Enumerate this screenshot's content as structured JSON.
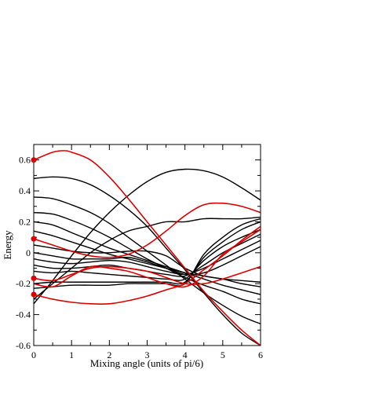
{
  "chart_data": {
    "type": "line",
    "title": "",
    "xlabel": "Mixing angle (units of pi/6)",
    "ylabel": "Energy",
    "xlim": [
      0,
      6
    ],
    "ylim": [
      -0.6,
      0.7
    ],
    "x_ticks": [
      0,
      1,
      2,
      3,
      4,
      5,
      6
    ],
    "y_ticks": [
      -0.6,
      -0.4,
      -0.2,
      0,
      0.2,
      0.4,
      0.6
    ],
    "grid": false,
    "legend": "none",
    "colors": {
      "black": "#000000",
      "red": "#dd0000"
    },
    "markers": [
      {
        "x": 0,
        "y": 0.6,
        "color": "red"
      },
      {
        "x": 0,
        "y": 0.09,
        "color": "red"
      },
      {
        "x": 0,
        "y": -0.165,
        "color": "red"
      },
      {
        "x": 0,
        "y": -0.27,
        "color": "red"
      }
    ],
    "series": [
      {
        "color": "red",
        "x": [
          0,
          0.5,
          0.8,
          1,
          1.5,
          2,
          2.5,
          3,
          3.5,
          4,
          4.5,
          5,
          5.5,
          6
        ],
        "y": [
          0.6,
          0.65,
          0.66,
          0.65,
          0.6,
          0.49,
          0.35,
          0.2,
          0.05,
          -0.1,
          -0.25,
          -0.38,
          -0.5,
          -0.6
        ]
      },
      {
        "color": "red",
        "x": [
          0,
          0.5,
          1,
          1.5,
          2,
          2.5,
          3,
          3.5,
          4,
          4.5,
          5,
          5.5,
          6
        ],
        "y": [
          0.09,
          0.05,
          0.01,
          -0.02,
          -0.03,
          -0.01,
          0.05,
          0.14,
          0.24,
          0.31,
          0.32,
          0.3,
          0.26
        ]
      },
      {
        "color": "red",
        "x": [
          0,
          0.5,
          1,
          1.5,
          2,
          2.5,
          3,
          3.5,
          4,
          4.5,
          5,
          5.5,
          6
        ],
        "y": [
          -0.165,
          -0.18,
          -0.14,
          -0.1,
          -0.09,
          -0.1,
          -0.12,
          -0.16,
          -0.2,
          -0.2,
          -0.17,
          -0.13,
          -0.09
        ]
      },
      {
        "color": "red",
        "x": [
          0,
          0.5,
          1,
          1.5,
          2,
          2.5,
          3,
          3.5,
          4,
          4.5,
          5,
          5.5,
          6
        ],
        "y": [
          -0.27,
          -0.3,
          -0.32,
          -0.33,
          -0.33,
          -0.31,
          -0.28,
          -0.24,
          -0.2,
          -0.11,
          -0.02,
          0.08,
          0.17
        ]
      },
      {
        "color": "red",
        "x": [
          0,
          0.5,
          1,
          1.5,
          2,
          2.5,
          3,
          3.5,
          4,
          4.5,
          5,
          5.5,
          6
        ],
        "y": [
          -0.2,
          -0.22,
          -0.15,
          -0.09,
          -0.1,
          -0.12,
          -0.16,
          -0.2,
          -0.22,
          -0.15,
          -0.01,
          0.07,
          0.15
        ]
      },
      {
        "color": "black",
        "x": [
          0,
          0.5,
          1,
          1.5,
          2,
          2.5,
          3,
          3.5,
          4,
          4.5,
          5,
          5.5,
          6
        ],
        "y": [
          0.48,
          0.49,
          0.48,
          0.44,
          0.37,
          0.28,
          0.17,
          0.03,
          -0.11,
          -0.26,
          -0.4,
          -0.52,
          -0.6
        ]
      },
      {
        "color": "black",
        "x": [
          0,
          0.5,
          1,
          1.5,
          2,
          2.5,
          3,
          3.5,
          4,
          4.5,
          5,
          5.5,
          6
        ],
        "y": [
          0.36,
          0.35,
          0.31,
          0.26,
          0.19,
          0.1,
          0.01,
          -0.08,
          -0.17,
          -0.26,
          -0.34,
          -0.41,
          -0.46
        ]
      },
      {
        "color": "black",
        "x": [
          0,
          0.5,
          1,
          1.5,
          2,
          2.5,
          3,
          3.5,
          4,
          4.5,
          5,
          5.5,
          6
        ],
        "y": [
          0.26,
          0.25,
          0.21,
          0.16,
          0.1,
          0.03,
          -0.04,
          -0.1,
          -0.16,
          -0.21,
          -0.25,
          -0.3,
          -0.33
        ]
      },
      {
        "color": "black",
        "x": [
          0,
          0.5,
          1,
          1.5,
          2,
          2.5,
          3,
          3.5,
          4,
          4.5,
          5,
          5.5,
          6
        ],
        "y": [
          0.2,
          0.18,
          0.13,
          0.08,
          0.03,
          -0.01,
          -0.05,
          -0.09,
          -0.13,
          -0.17,
          -0.21,
          -0.24,
          -0.27
        ]
      },
      {
        "color": "black",
        "x": [
          0,
          0.5,
          1,
          1.5,
          2,
          2.5,
          3,
          3.5,
          4,
          4.5,
          5,
          5.5,
          6
        ],
        "y": [
          0.14,
          0.11,
          0.07,
          0.03,
          -0.01,
          -0.04,
          -0.07,
          -0.1,
          -0.13,
          -0.15,
          -0.17,
          -0.18,
          -0.19
        ]
      },
      {
        "color": "black",
        "x": [
          0,
          0.5,
          1,
          1.5,
          2,
          2.5,
          3,
          3.5,
          4,
          4.5,
          5,
          5.5,
          6
        ],
        "y": [
          0.05,
          0.03,
          0.01,
          0.0,
          0.0,
          0.01,
          0.01,
          -0.02,
          -0.1,
          -0.15,
          -0.17,
          -0.2,
          -0.22
        ]
      },
      {
        "color": "black",
        "x": [
          0,
          0.5,
          1,
          1.5,
          2,
          2.5,
          3,
          3.5,
          4,
          4.5,
          5,
          5.5,
          6
        ],
        "y": [
          0.0,
          -0.02,
          -0.04,
          -0.04,
          -0.04,
          -0.03,
          -0.06,
          -0.1,
          -0.14,
          -0.13,
          -0.08,
          -0.02,
          0.04
        ]
      },
      {
        "color": "black",
        "x": [
          0,
          0.5,
          1,
          1.5,
          2,
          2.5,
          3,
          3.5,
          4,
          4.5,
          5,
          5.5,
          6
        ],
        "y": [
          -0.04,
          -0.06,
          -0.07,
          -0.06,
          -0.05,
          -0.06,
          -0.09,
          -0.12,
          -0.14,
          -0.1,
          -0.04,
          0.02,
          0.08
        ]
      },
      {
        "color": "black",
        "x": [
          0,
          0.5,
          1,
          1.5,
          2,
          2.5,
          3,
          3.5,
          4,
          4.5,
          5,
          5.5,
          6
        ],
        "y": [
          -0.08,
          -0.1,
          -0.1,
          -0.09,
          -0.08,
          -0.1,
          -0.12,
          -0.14,
          -0.15,
          -0.08,
          0.0,
          0.06,
          0.12
        ]
      },
      {
        "color": "black",
        "x": [
          0,
          0.5,
          1,
          1.5,
          2,
          2.5,
          3,
          3.5,
          4,
          4.5,
          5,
          5.5,
          6
        ],
        "y": [
          -0.12,
          -0.13,
          -0.12,
          -0.13,
          -0.14,
          -0.15,
          -0.16,
          -0.17,
          -0.17,
          -0.05,
          0.04,
          0.1,
          0.15
        ]
      },
      {
        "color": "black",
        "x": [
          0,
          0.5,
          1,
          1.5,
          2,
          2.5,
          3,
          3.5,
          4,
          4.5,
          5,
          5.5,
          6
        ],
        "y": [
          -0.2,
          -0.19,
          -0.19,
          -0.19,
          -0.19,
          -0.19,
          -0.19,
          -0.19,
          -0.19,
          -0.03,
          0.07,
          0.15,
          0.2
        ]
      },
      {
        "color": "black",
        "x": [
          0,
          0.5,
          1,
          1.5,
          2,
          2.5,
          3,
          3.5,
          4,
          4.5,
          5,
          5.5,
          6
        ],
        "y": [
          -0.23,
          -0.22,
          -0.21,
          -0.21,
          -0.21,
          -0.2,
          -0.2,
          -0.2,
          -0.2,
          -0.01,
          0.1,
          0.18,
          0.22
        ]
      },
      {
        "color": "black",
        "x": [
          0,
          0.5,
          1,
          1.5,
          2,
          2.5,
          3,
          3.5,
          4,
          4.5,
          5,
          5.5,
          6
        ],
        "y": [
          -0.3,
          -0.2,
          -0.1,
          0.0,
          0.08,
          0.14,
          0.17,
          0.2,
          0.2,
          0.22,
          0.22,
          0.22,
          0.23
        ]
      },
      {
        "color": "black",
        "x": [
          0,
          0.5,
          1,
          1.5,
          2,
          2.5,
          3,
          3.5,
          4,
          4.5,
          5,
          5.5,
          6
        ],
        "y": [
          -0.33,
          -0.18,
          -0.02,
          0.13,
          0.26,
          0.37,
          0.46,
          0.52,
          0.54,
          0.53,
          0.49,
          0.42,
          0.34
        ]
      }
    ]
  }
}
